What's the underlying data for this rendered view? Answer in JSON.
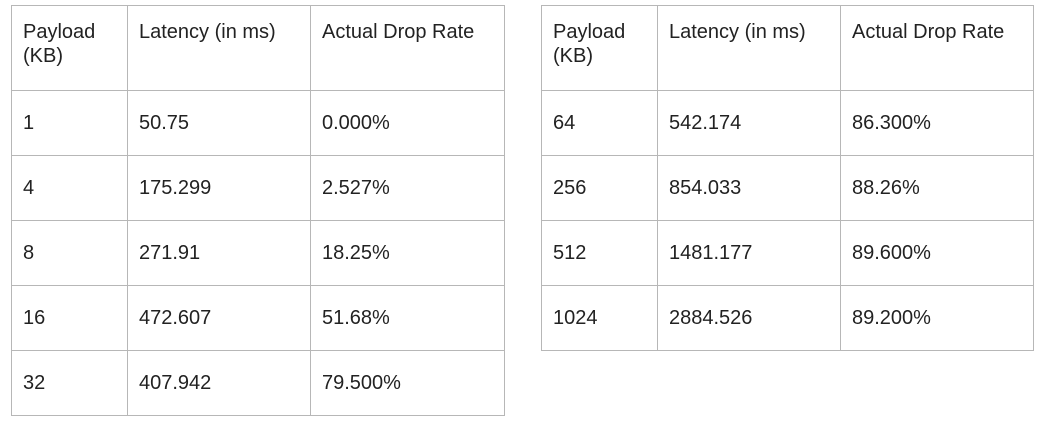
{
  "left_table": {
    "headers": [
      "Payload\n(KB)",
      "Latency (in ms)",
      "Actual Drop Rate"
    ],
    "rows": [
      [
        "1",
        "50.75",
        "0.000%"
      ],
      [
        "4",
        "175.299",
        "2.527%"
      ],
      [
        "8",
        "271.91",
        "18.25%"
      ],
      [
        "16",
        "472.607",
        "51.68%"
      ],
      [
        "32",
        "407.942",
        "79.500%"
      ]
    ]
  },
  "right_table": {
    "headers": [
      "Payload\n(KB)",
      "Latency (in ms)",
      "Actual Drop Rate"
    ],
    "rows": [
      [
        "64",
        "542.174",
        "86.300%"
      ],
      [
        "256",
        "854.033",
        "88.26%"
      ],
      [
        "512",
        "1481.177",
        "89.600%"
      ],
      [
        "1024",
        "2884.526",
        "89.200%"
      ]
    ]
  }
}
